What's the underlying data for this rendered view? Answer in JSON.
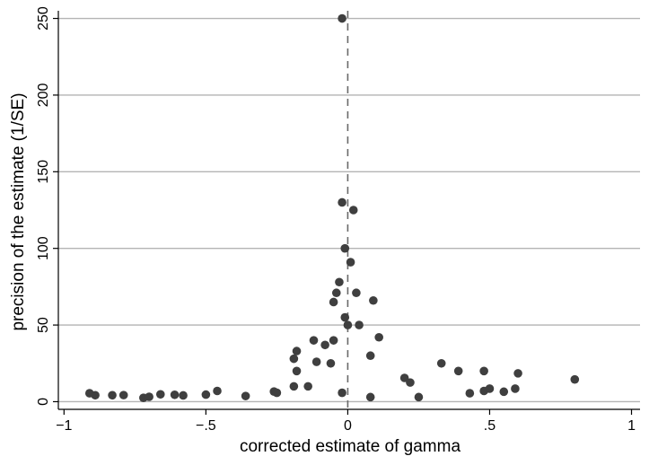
{
  "chart_data": {
    "type": "scatter",
    "title": "",
    "xlabel": "corrected estimate of gamma",
    "ylabel": "precision of the estimate (1/SE)",
    "xlim": [
      -1.02,
      1.03
    ],
    "ylim": [
      -5,
      255
    ],
    "xticks": [
      -1,
      -0.5,
      0,
      0.5,
      1
    ],
    "xtick_labels": [
      "−1",
      "−.5",
      "0",
      ".5",
      "1"
    ],
    "yticks": [
      0,
      50,
      100,
      150,
      200,
      250
    ],
    "ytick_labels": [
      "0",
      "50",
      "100",
      "150",
      "200",
      "250"
    ],
    "grid": "horizontal",
    "reference_line": {
      "x": 0,
      "style": "dashed"
    },
    "marker_color": "#3f3f3f",
    "points": [
      {
        "x": -0.91,
        "y": 5.5
      },
      {
        "x": -0.89,
        "y": 4.2
      },
      {
        "x": -0.83,
        "y": 4.2
      },
      {
        "x": -0.79,
        "y": 4.3
      },
      {
        "x": -0.72,
        "y": 2.5
      },
      {
        "x": -0.7,
        "y": 3.2
      },
      {
        "x": -0.66,
        "y": 4.8
      },
      {
        "x": -0.61,
        "y": 4.5
      },
      {
        "x": -0.58,
        "y": 4.1
      },
      {
        "x": -0.5,
        "y": 4.6
      },
      {
        "x": -0.46,
        "y": 7.0
      },
      {
        "x": -0.36,
        "y": 3.7
      },
      {
        "x": -0.26,
        "y": 6.6
      },
      {
        "x": -0.25,
        "y": 5.8
      },
      {
        "x": -0.19,
        "y": 28
      },
      {
        "x": -0.18,
        "y": 20
      },
      {
        "x": -0.18,
        "y": 33
      },
      {
        "x": -0.19,
        "y": 10
      },
      {
        "x": -0.14,
        "y": 10
      },
      {
        "x": -0.12,
        "y": 40
      },
      {
        "x": -0.11,
        "y": 26
      },
      {
        "x": -0.08,
        "y": 37
      },
      {
        "x": -0.06,
        "y": 25
      },
      {
        "x": -0.05,
        "y": 40
      },
      {
        "x": -0.05,
        "y": 65
      },
      {
        "x": -0.04,
        "y": 71
      },
      {
        "x": -0.03,
        "y": 78
      },
      {
        "x": -0.02,
        "y": 5.8
      },
      {
        "x": -0.02,
        "y": 250
      },
      {
        "x": -0.02,
        "y": 130
      },
      {
        "x": -0.01,
        "y": 100
      },
      {
        "x": -0.01,
        "y": 55
      },
      {
        "x": 0.0,
        "y": 50
      },
      {
        "x": 0.01,
        "y": 91
      },
      {
        "x": 0.02,
        "y": 125
      },
      {
        "x": 0.03,
        "y": 71
      },
      {
        "x": 0.04,
        "y": 50
      },
      {
        "x": 0.08,
        "y": 30
      },
      {
        "x": 0.08,
        "y": 3
      },
      {
        "x": 0.09,
        "y": 66
      },
      {
        "x": 0.11,
        "y": 42
      },
      {
        "x": 0.2,
        "y": 15.5
      },
      {
        "x": 0.22,
        "y": 12.5
      },
      {
        "x": 0.25,
        "y": 3
      },
      {
        "x": 0.33,
        "y": 25
      },
      {
        "x": 0.39,
        "y": 20
      },
      {
        "x": 0.43,
        "y": 5.5
      },
      {
        "x": 0.48,
        "y": 20
      },
      {
        "x": 0.48,
        "y": 7
      },
      {
        "x": 0.5,
        "y": 8.5
      },
      {
        "x": 0.55,
        "y": 6.5
      },
      {
        "x": 0.59,
        "y": 8.5
      },
      {
        "x": 0.6,
        "y": 18.5
      },
      {
        "x": 0.8,
        "y": 14.5
      }
    ]
  }
}
